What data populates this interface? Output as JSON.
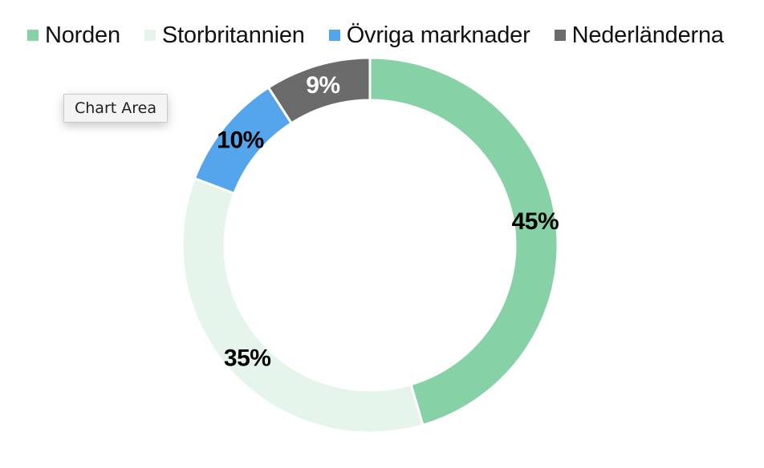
{
  "chart_data": {
    "type": "pie",
    "variant": "donut",
    "title": "",
    "categories": [
      "Norden",
      "Storbritannien",
      "Övriga marknader",
      "Nederländerna"
    ],
    "values": [
      45,
      35,
      10,
      9
    ],
    "data_labels": [
      "45%",
      "35%",
      "10%",
      "9%"
    ],
    "colors": [
      "#86d1a5",
      "#e5f5eb",
      "#55a5ec",
      "#6b6b6b"
    ],
    "label_colors": [
      "#000000",
      "#000000",
      "#000000",
      "#ffffff"
    ],
    "legend_position": "top"
  },
  "tooltip": {
    "label": "Chart Area"
  }
}
